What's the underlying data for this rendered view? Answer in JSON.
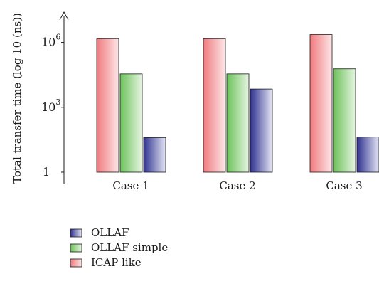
{
  "chart_data": {
    "type": "bar",
    "ylabel": "Total transfer time (log 10 (ns))",
    "y_scale": "log10",
    "ylim": [
      1,
      30000000
    ],
    "y_ticks": [
      {
        "value": 1,
        "label": "1"
      },
      {
        "value": 1000,
        "label": "10",
        "exp": "3"
      },
      {
        "value": 1000000,
        "label": "10",
        "exp": "6"
      }
    ],
    "categories": [
      "Case 1",
      "Case 2",
      "Case 3"
    ],
    "series": [
      {
        "name": "ICAP like",
        "color": "#ee4a4f",
        "values": [
          1500000,
          1500000,
          2300000
        ]
      },
      {
        "name": "OLLAF simple",
        "color": "#5cb84a",
        "values": [
          35000,
          35000,
          60000
        ]
      },
      {
        "name": "OLLAF",
        "color": "#3c3f9b",
        "values": [
          40,
          7000,
          42
        ]
      }
    ],
    "legend": {
      "position": "bottom-left",
      "entries": [
        "OLLAF",
        "OLLAF simple",
        "ICAP like"
      ]
    },
    "grid": false
  }
}
